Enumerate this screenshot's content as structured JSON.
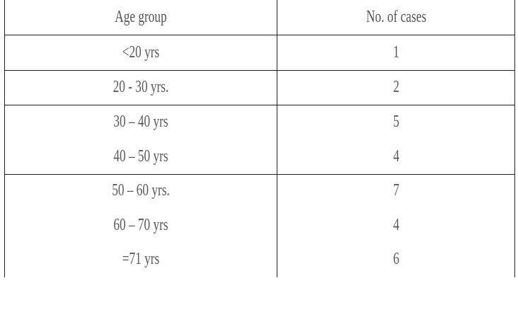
{
  "table": {
    "headers": [
      "Age group",
      "No. of cases"
    ],
    "rows": [
      {
        "age_group": "<20 yrs",
        "cases": "1"
      },
      {
        "age_group": "20 - 30 yrs.",
        "cases": "2"
      },
      {
        "age_group": "30 – 40 yrs",
        "cases": "5"
      },
      {
        "age_group": "40 – 50 yrs",
        "cases": "4"
      },
      {
        "age_group": "50 – 60 yrs.",
        "cases": "7"
      },
      {
        "age_group": "60 – 70 yrs",
        "cases": "4"
      },
      {
        "age_group": "=71 yrs",
        "cases": "6"
      }
    ]
  }
}
